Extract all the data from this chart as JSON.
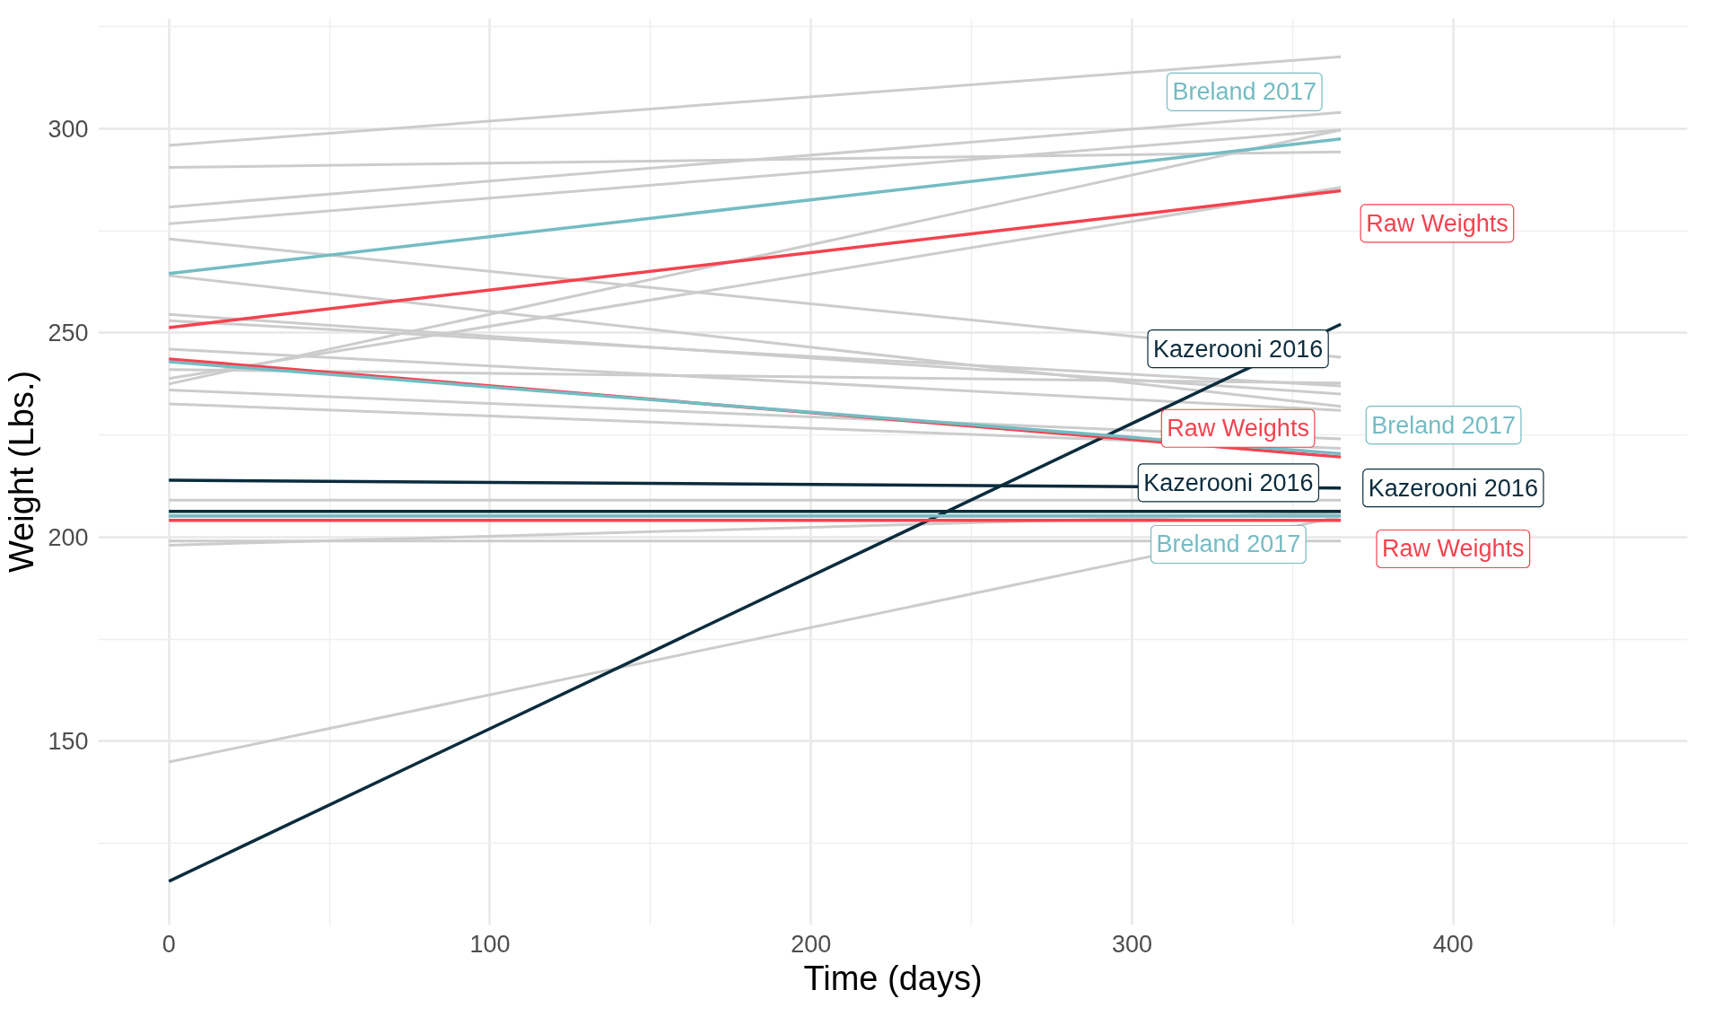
{
  "chart_data": {
    "type": "line",
    "xlabel": "Time (days)",
    "ylabel": "Weight (Lbs.)",
    "xlim": [
      -22,
      473
    ],
    "ylim": [
      105,
      327
    ],
    "xticks": [
      0,
      100,
      200,
      300,
      400
    ],
    "yticks": [
      150,
      200,
      250,
      300
    ],
    "grid": true,
    "line_style": "solid",
    "marker": "none",
    "x": [
      0,
      365
    ],
    "series": [
      {
        "color": "#cccccc",
        "values": [
          295.9,
          317.6
        ]
      },
      {
        "color": "#cccccc",
        "values": [
          290.5,
          294.3
        ]
      },
      {
        "color": "#cccccc",
        "values": [
          280.8,
          304
        ]
      },
      {
        "color": "#cccccc",
        "values": [
          276.7,
          299.7
        ]
      },
      {
        "color": "#cccccc",
        "values": [
          273,
          244
        ]
      },
      {
        "color": "#cccccc",
        "values": [
          264,
          232
        ]
      },
      {
        "color": "#cccccc",
        "values": [
          254.5,
          235
        ]
      },
      {
        "color": "#cccccc",
        "values": [
          253,
          237
        ]
      },
      {
        "color": "#cccccc",
        "values": [
          246,
          231
        ]
      },
      {
        "color": "#cccccc",
        "values": [
          241,
          237.7
        ]
      },
      {
        "color": "#cccccc",
        "values": [
          237.5,
          299.7
        ]
      },
      {
        "color": "#cccccc",
        "values": [
          238.8,
          285.6
        ]
      },
      {
        "color": "#cccccc",
        "values": [
          236,
          224
        ]
      },
      {
        "color": "#cccccc",
        "values": [
          232.6,
          221.7
        ]
      },
      {
        "color": "#cccccc",
        "values": [
          209,
          209
        ]
      },
      {
        "color": "#cccccc",
        "values": [
          199,
          199
        ]
      },
      {
        "color": "#cccccc",
        "values": [
          198,
          206
        ]
      },
      {
        "color": "#cccccc",
        "values": [
          144.9,
          205
        ]
      },
      {
        "color": "#cccccc",
        "values": [
          205,
          205
        ]
      },
      {
        "name": "Breland 2017",
        "color": "#74bcc3",
        "values": [
          264.5,
          297.5
        ]
      },
      {
        "name": "Raw Weights",
        "color": "#f5424f",
        "values": [
          251.3,
          284.8
        ]
      },
      {
        "name": "Kazerooni 2016",
        "color": "#0b2c3d",
        "values": [
          115.7,
          252.1
        ]
      },
      {
        "name": "Raw Weights",
        "color": "#f5424f",
        "values": [
          243.6,
          219.6
        ]
      },
      {
        "name": "Breland 2017",
        "color": "#74bcc3",
        "values": [
          242.9,
          220.4
        ]
      },
      {
        "name": "Kazerooni 2016",
        "color": "#0b2c3d",
        "values": [
          213.9,
          212
        ]
      },
      {
        "name": "Breland 2017",
        "color": "#74bcc3",
        "values": [
          205.2,
          205.2
        ]
      },
      {
        "name": "Raw Weights",
        "color": "#f5424f",
        "values": [
          204.1,
          204.1
        ]
      },
      {
        "name": "Kazerooni 2016",
        "color": "#0b2c3d",
        "values": [
          206.3,
          206.3
        ]
      }
    ]
  }
}
